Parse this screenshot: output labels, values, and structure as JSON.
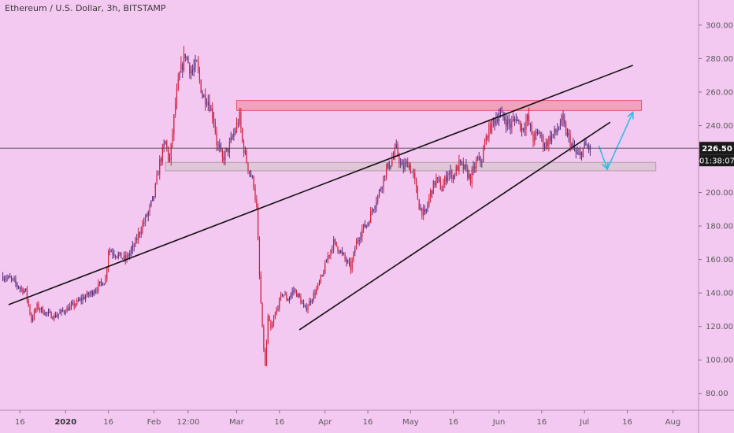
{
  "chart_data": {
    "type": "candlestick",
    "title": "Ethereum / U.S. Dollar, 3h, BITSTAMP",
    "ylim": [
      70,
      315
    ],
    "y_ticks": [
      300,
      280,
      260,
      240,
      220,
      200,
      180,
      160,
      140,
      120,
      100,
      80
    ],
    "y_tick_labels": [
      "300.00",
      "280.00",
      "260.00",
      "240.00",
      "220.00",
      "200.00",
      "180.00",
      "160.00",
      "140.00",
      "120.00",
      "100.00",
      "80.00"
    ],
    "x_tick_labels": [
      {
        "label": "16",
        "day": -16,
        "bold": false
      },
      {
        "label": "2020",
        "day": 0,
        "bold": true
      },
      {
        "label": "16",
        "day": 15,
        "bold": false
      },
      {
        "label": "Feb",
        "day": 31,
        "bold": false
      },
      {
        "label": "12:00",
        "day": 43,
        "bold": false
      },
      {
        "label": "Mar",
        "day": 60,
        "bold": false
      },
      {
        "label": "16",
        "day": 75,
        "bold": false
      },
      {
        "label": "Apr",
        "day": 91,
        "bold": false
      },
      {
        "label": "16",
        "day": 106,
        "bold": false
      },
      {
        "label": "May",
        "day": 121,
        "bold": false
      },
      {
        "label": "16",
        "day": 136,
        "bold": false
      },
      {
        "label": "Jun",
        "day": 152,
        "bold": false
      },
      {
        "label": "16",
        "day": 167,
        "bold": false
      },
      {
        "label": "Jul",
        "day": 182,
        "bold": false
      },
      {
        "label": "16",
        "day": 197,
        "bold": false
      },
      {
        "label": "Aug",
        "day": 213,
        "bold": false
      }
    ],
    "current_price": {
      "value": 226.5,
      "label": "226.50",
      "countdown": "01:38:07"
    },
    "price_path": [
      [
        -22,
        150
      ],
      [
        -19,
        148
      ],
      [
        -16,
        143
      ],
      [
        -14,
        141
      ],
      [
        -12,
        124
      ],
      [
        -10,
        132
      ],
      [
        -7,
        128
      ],
      [
        -4,
        126
      ],
      [
        -1,
        129
      ],
      [
        3,
        133
      ],
      [
        6,
        137
      ],
      [
        9,
        140
      ],
      [
        12,
        145
      ],
      [
        14,
        148
      ],
      [
        15,
        166
      ],
      [
        18,
        163
      ],
      [
        21,
        160
      ],
      [
        24,
        168
      ],
      [
        26,
        177
      ],
      [
        29,
        188
      ],
      [
        31,
        198
      ],
      [
        33,
        218
      ],
      [
        35,
        230
      ],
      [
        36.5,
        218
      ],
      [
        38.5,
        253
      ],
      [
        40,
        270
      ],
      [
        42,
        283
      ],
      [
        44,
        272
      ],
      [
        46,
        276
      ],
      [
        48,
        258
      ],
      [
        50,
        255
      ],
      [
        52,
        244
      ],
      [
        53,
        230
      ],
      [
        55,
        220
      ],
      [
        57,
        226
      ],
      [
        59,
        235
      ],
      [
        61,
        245
      ],
      [
        62,
        230
      ],
      [
        64,
        215
      ],
      [
        66,
        205
      ],
      [
        67,
        190
      ],
      [
        68,
        150
      ],
      [
        69,
        118
      ],
      [
        70,
        96
      ],
      [
        71,
        125
      ],
      [
        72,
        118
      ],
      [
        74,
        130
      ],
      [
        76,
        140
      ],
      [
        78,
        136
      ],
      [
        80,
        142
      ],
      [
        82,
        137
      ],
      [
        84,
        130
      ],
      [
        86,
        136
      ],
      [
        88,
        142
      ],
      [
        90,
        150
      ],
      [
        92,
        162
      ],
      [
        94,
        170
      ],
      [
        96,
        166
      ],
      [
        98,
        160
      ],
      [
        100,
        155
      ],
      [
        102,
        170
      ],
      [
        104,
        178
      ],
      [
        106,
        182
      ],
      [
        108,
        192
      ],
      [
        110,
        200
      ],
      [
        112,
        212
      ],
      [
        114,
        218
      ],
      [
        116,
        226
      ],
      [
        118,
        214
      ],
      [
        120,
        218
      ],
      [
        122,
        210
      ],
      [
        124,
        192
      ],
      [
        126,
        186
      ],
      [
        128,
        200
      ],
      [
        130,
        208
      ],
      [
        132,
        202
      ],
      [
        134,
        212
      ],
      [
        136,
        210
      ],
      [
        138,
        217
      ],
      [
        140,
        214
      ],
      [
        142,
        208
      ],
      [
        144,
        218
      ],
      [
        146,
        220
      ],
      [
        148,
        236
      ],
      [
        150,
        242
      ],
      [
        152,
        247
      ],
      [
        154,
        244
      ],
      [
        156,
        240
      ],
      [
        158,
        245
      ],
      [
        160,
        238
      ],
      [
        162,
        244
      ],
      [
        164,
        232
      ],
      [
        166,
        236
      ],
      [
        168,
        228
      ],
      [
        170,
        233
      ],
      [
        172,
        236
      ],
      [
        174,
        243
      ],
      [
        176,
        234
      ],
      [
        178,
        226
      ],
      [
        180,
        221
      ],
      [
        182,
        228
      ],
      [
        184,
        226
      ]
    ],
    "trendlines": [
      {
        "from": [
          -20,
          133
        ],
        "to": [
          199,
          276
        ]
      },
      {
        "from": [
          82,
          118
        ],
        "to": [
          191,
          242
        ]
      }
    ],
    "zones": [
      {
        "name": "resistance",
        "from_day": 60,
        "to_day": 202,
        "low": 249,
        "high": 255,
        "fill": "#f39ab5",
        "stroke": "#e25a6a"
      },
      {
        "name": "support",
        "from_day": 35,
        "to_day": 207,
        "low": 213,
        "high": 218,
        "fill": "#dcc6d3",
        "stroke": "#b29fa6"
      }
    ],
    "projection": [
      [
        187,
        228
      ],
      [
        190,
        214
      ],
      [
        199,
        248
      ]
    ]
  },
  "colors": {
    "background": "#f3c8f1",
    "candle": "#5a2a78",
    "highlight": "#d21f3c",
    "trendline": "#111111",
    "projection": "#2bbfe6",
    "price_badge": "#1a1a1a"
  }
}
